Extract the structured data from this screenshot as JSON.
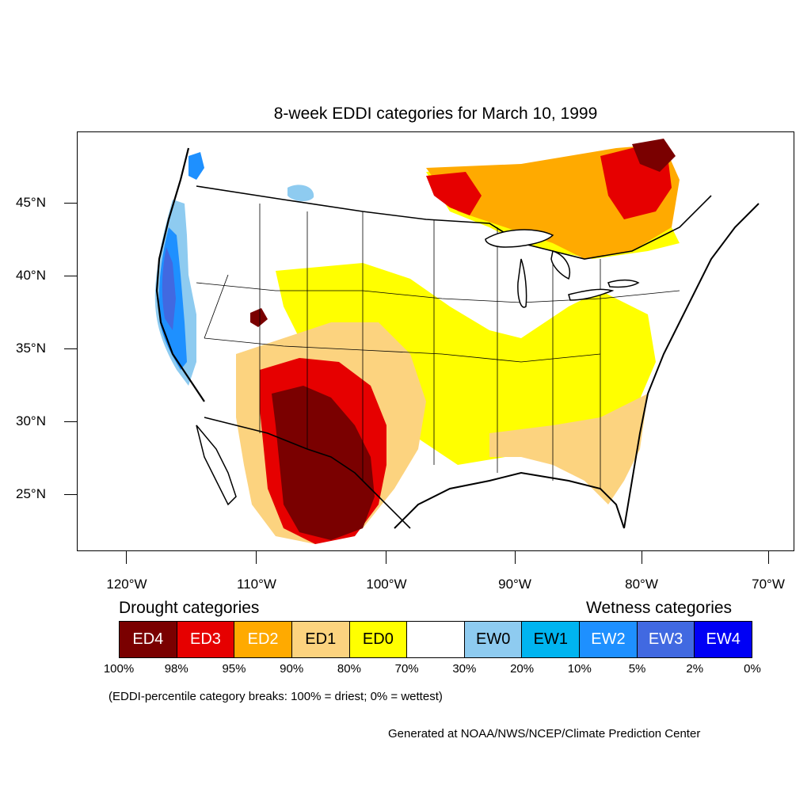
{
  "title": "8-week EDDI categories for March 10, 1999",
  "map": {
    "lat_labels": [
      "45°N",
      "40°N",
      "35°N",
      "30°N",
      "25°N"
    ],
    "lon_labels": [
      "120°W",
      "110°W",
      "100°W",
      "90°W",
      "80°W",
      "70°W"
    ]
  },
  "legend": {
    "drought_heading": "Drought categories",
    "wetness_heading": "Wetness categories",
    "categories": [
      {
        "label": "ED4",
        "color": "#7a0000",
        "text_color": "#ffffff"
      },
      {
        "label": "ED3",
        "color": "#e60000",
        "text_color": "#ffffff"
      },
      {
        "label": "ED2",
        "color": "#ffaa00",
        "text_color": "#ffffff"
      },
      {
        "label": "ED1",
        "color": "#fcd37f",
        "text_color": "#000000"
      },
      {
        "label": "ED0",
        "color": "#ffff00",
        "text_color": "#000000"
      },
      {
        "label": "",
        "color": "#ffffff",
        "text_color": "#000000"
      },
      {
        "label": "EW0",
        "color": "#8ecbf0",
        "text_color": "#000000"
      },
      {
        "label": "EW1",
        "color": "#00b4f0",
        "text_color": "#000000"
      },
      {
        "label": "EW2",
        "color": "#1e90ff",
        "text_color": "#ffffff"
      },
      {
        "label": "EW3",
        "color": "#4169e1",
        "text_color": "#ffffff"
      },
      {
        "label": "EW4",
        "color": "#0000f5",
        "text_color": "#ffffff"
      }
    ],
    "breaks": [
      "100%",
      "98%",
      "95%",
      "90%",
      "80%",
      "70%",
      "30%",
      "20%",
      "10%",
      "5%",
      "2%",
      "0%"
    ]
  },
  "note": "(EDDI-percentile category breaks: 100% = driest; 0% = wettest)",
  "credit": "Generated at NOAA/NWS/NCEP/Climate Prediction Center"
}
